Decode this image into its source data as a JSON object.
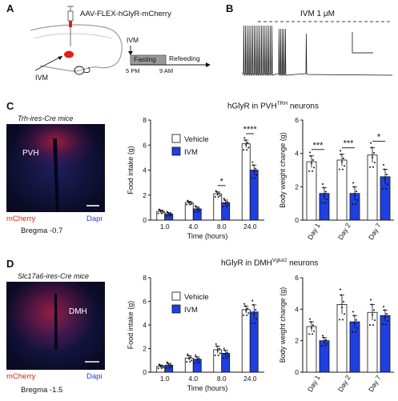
{
  "panels": {
    "a": {
      "label": "A",
      "virus": "AAV-FLEX-hGlyR-mCherry",
      "ivm_left": "IVM",
      "ivm_top": "IVM",
      "fasting": "Fasting",
      "refeeding": "Refeeding",
      "time_start": "5 PM",
      "time_end": "9 AM"
    },
    "b": {
      "label": "B",
      "ivm_dose": "IVM 1 μM"
    },
    "c": {
      "label": "C",
      "mouse_line": "Trh-ires-Cre mice",
      "region": "PVH",
      "channel_red": "mCherry",
      "channel_blue": "Dapi",
      "bregma": "Bregma  -0.7",
      "title_main": "hGlyR in PVH",
      "title_sup": "TRH",
      "title_end": " neurons"
    },
    "d": {
      "label": "D",
      "mouse_line": "Slc17a6-ires-Cre mice",
      "region": "DMH",
      "channel_red": "mCherry",
      "channel_blue": "Dapi",
      "bregma": "Bregma  -1.5",
      "title_main": "hGlyR in DMH",
      "title_sup": "Vglut2",
      "title_end": " neurons"
    }
  },
  "colors": {
    "vehicle": "#ffffff",
    "ivm": "#1f3fe0",
    "mcherry": "#e0201c",
    "dapi": "#2a3ad8"
  },
  "chart_data": [
    {
      "id": "c-food",
      "type": "bar",
      "ylabel": "Food intake (g)",
      "xlabel": "Time (hours)",
      "categories": [
        "1.0",
        "4.0",
        "8.0",
        "24.0"
      ],
      "ylim": [
        0,
        8
      ],
      "yticks": [
        0,
        2,
        4,
        6,
        8
      ],
      "legend": [
        "Vehicle",
        "IVM"
      ],
      "series": [
        {
          "name": "Vehicle",
          "values": [
            0.7,
            1.4,
            2.1,
            6.1
          ],
          "err": [
            0.1,
            0.1,
            0.15,
            0.3
          ]
        },
        {
          "name": "IVM",
          "values": [
            0.5,
            0.9,
            1.4,
            4.0
          ],
          "err": [
            0.1,
            0.15,
            0.2,
            0.4
          ]
        }
      ],
      "significance": [
        "",
        "",
        "*",
        "****"
      ]
    },
    {
      "id": "c-weight",
      "type": "bar",
      "ylabel": "Body weight change (g)",
      "categories": [
        "Day 1",
        "Day 2",
        "Day 7"
      ],
      "ylim": [
        0,
        6
      ],
      "yticks": [
        0,
        2,
        4,
        6
      ],
      "series": [
        {
          "name": "Vehicle",
          "values": [
            3.5,
            3.6,
            3.9
          ],
          "err": [
            0.35,
            0.35,
            0.45
          ]
        },
        {
          "name": "IVM",
          "values": [
            1.6,
            1.6,
            2.6
          ],
          "err": [
            0.35,
            0.4,
            0.45
          ]
        }
      ],
      "significance": [
        "***",
        "***",
        "*"
      ]
    },
    {
      "id": "d-food",
      "type": "bar",
      "ylabel": "Food intake (g)",
      "xlabel": "Time (hours)",
      "categories": [
        "1.0",
        "4.0",
        "8.0",
        "24.0"
      ],
      "ylim": [
        0,
        8
      ],
      "yticks": [
        0,
        2,
        4,
        6,
        8
      ],
      "legend": [
        "Vehicle",
        "IVM"
      ],
      "series": [
        {
          "name": "Vehicle",
          "values": [
            0.5,
            1.2,
            1.9,
            5.3
          ],
          "err": [
            0.1,
            0.2,
            0.3,
            0.3
          ]
        },
        {
          "name": "IVM",
          "values": [
            0.6,
            1.1,
            1.6,
            5.1
          ],
          "err": [
            0.15,
            0.2,
            0.25,
            0.6
          ]
        }
      ],
      "significance": [
        "",
        "",
        "",
        ""
      ]
    },
    {
      "id": "d-weight",
      "type": "bar",
      "ylabel": "Body weight change (g)",
      "categories": [
        "Day 1",
        "Day 2",
        "Day 7"
      ],
      "ylim": [
        0,
        6
      ],
      "yticks": [
        0,
        2,
        4,
        6
      ],
      "series": [
        {
          "name": "Vehicle",
          "values": [
            2.9,
            4.3,
            3.8
          ],
          "err": [
            0.3,
            0.6,
            0.5
          ]
        },
        {
          "name": "IVM",
          "values": [
            2.0,
            3.2,
            3.6
          ],
          "err": [
            0.2,
            0.4,
            0.35
          ]
        }
      ],
      "significance": [
        "",
        "",
        ""
      ]
    }
  ]
}
